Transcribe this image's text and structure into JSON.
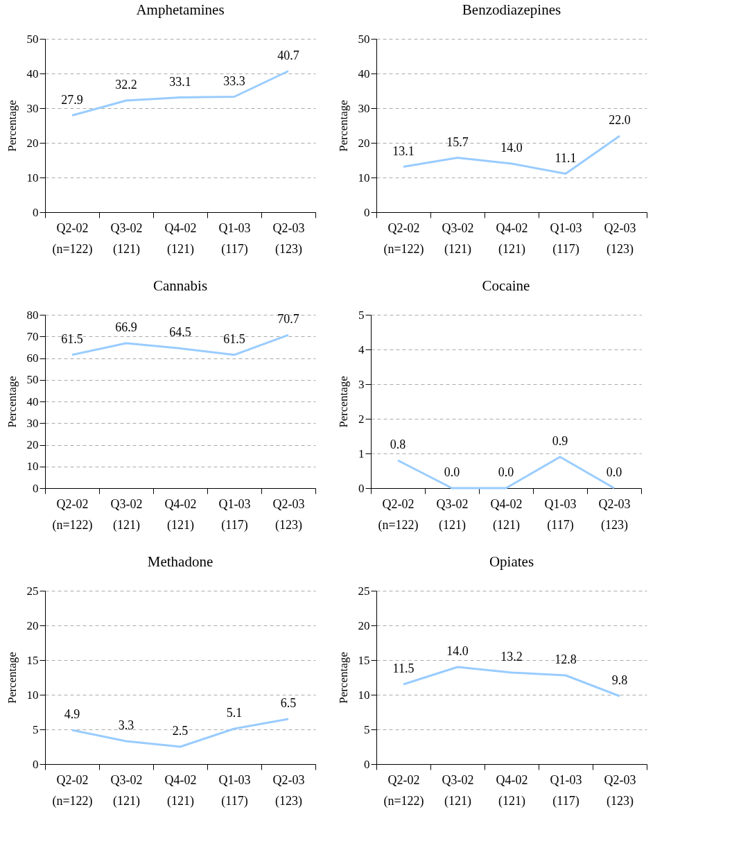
{
  "chart_data": [
    {
      "type": "line",
      "title": "Amphetamines",
      "ylabel": "Percentage",
      "categories": [
        "Q2-02\n(n=122)",
        "Q3-02\n(121)",
        "Q4-02\n(121)",
        "Q1-03\n(117)",
        "Q2-03\n(123)"
      ],
      "series": [
        {
          "color": "#99ccff",
          "values": [
            27.9,
            32.2,
            33.1,
            33.3,
            40.7
          ],
          "value_labels": [
            "27.9",
            "32.2",
            "33.1",
            "33.3",
            "40.7"
          ]
        }
      ],
      "ylim": [
        0,
        50
      ],
      "yticks": [
        0,
        10,
        20,
        30,
        40,
        50
      ],
      "grid": "y"
    },
    {
      "type": "line",
      "title": "Benzodiazepines",
      "ylabel": "Percentage",
      "categories": [
        "Q2-02\n(n=122)",
        "Q3-02\n(121)",
        "Q4-02\n(121)",
        "Q1-03\n(117)",
        "Q2-03\n(123)"
      ],
      "series": [
        {
          "color": "#99ccff",
          "values": [
            13.1,
            15.7,
            14.0,
            11.1,
            22.0
          ],
          "value_labels": [
            "13.1",
            "15.7",
            "14.0",
            "11.1",
            "22.0"
          ]
        }
      ],
      "ylim": [
        0,
        50
      ],
      "yticks": [
        0,
        10,
        20,
        30,
        40,
        50
      ],
      "grid": "y"
    },
    {
      "type": "line",
      "title": "Cannabis",
      "ylabel": "Percentage",
      "categories": [
        "Q2-02\n(n=122)",
        "Q3-02\n(121)",
        "Q4-02\n(121)",
        "Q1-03\n(117)",
        "Q2-03\n(123)"
      ],
      "series": [
        {
          "color": "#99ccff",
          "values": [
            61.5,
            66.9,
            64.5,
            61.5,
            70.7
          ],
          "value_labels": [
            "61.5",
            "66.9",
            "64.5",
            "61.5",
            "70.7"
          ]
        }
      ],
      "ylim": [
        0,
        80
      ],
      "yticks": [
        0,
        10,
        20,
        30,
        40,
        50,
        60,
        70,
        80
      ],
      "grid": "y"
    },
    {
      "type": "line",
      "title": "Cocaine",
      "ylabel": "Percentage",
      "categories": [
        "Q2-02\n(n=122)",
        "Q3-02\n(121)",
        "Q4-02\n(121)",
        "Q1-03\n(117)",
        "Q2-03\n(123)"
      ],
      "series": [
        {
          "color": "#99ccff",
          "values": [
            0.8,
            0.0,
            0.0,
            0.9,
            0.0
          ],
          "value_labels": [
            "0.8",
            "0.0",
            "0.0",
            "0.9",
            "0.0"
          ]
        }
      ],
      "ylim": [
        0,
        5
      ],
      "yticks": [
        0,
        1,
        2,
        3,
        4,
        5
      ],
      "grid": "y"
    },
    {
      "type": "line",
      "title": "Methadone",
      "ylabel": "Percentage",
      "categories": [
        "Q2-02\n(n=122)",
        "Q3-02\n(121)",
        "Q4-02\n(121)",
        "Q1-03\n(117)",
        "Q2-03\n(123)"
      ],
      "series": [
        {
          "color": "#99ccff",
          "values": [
            4.9,
            3.3,
            2.5,
            5.1,
            6.5
          ],
          "value_labels": [
            "4.9",
            "3.3",
            "2.5",
            "5.1",
            "6.5"
          ]
        }
      ],
      "ylim": [
        0,
        25
      ],
      "yticks": [
        0,
        5,
        10,
        15,
        20,
        25
      ],
      "grid": "y"
    },
    {
      "type": "line",
      "title": "Opiates",
      "ylabel": "Percentage",
      "categories": [
        "Q2-02\n(n=122)",
        "Q3-02\n(121)",
        "Q4-02\n(121)",
        "Q1-03\n(117)",
        "Q2-03\n(123)"
      ],
      "series": [
        {
          "color": "#99ccff",
          "values": [
            11.5,
            14.0,
            13.2,
            12.8,
            9.8
          ],
          "value_labels": [
            "11.5",
            "14.0",
            "13.2",
            "12.8",
            "9.8"
          ]
        }
      ],
      "ylim": [
        0,
        25
      ],
      "yticks": [
        0,
        5,
        10,
        15,
        20,
        25
      ],
      "grid": "y"
    }
  ]
}
